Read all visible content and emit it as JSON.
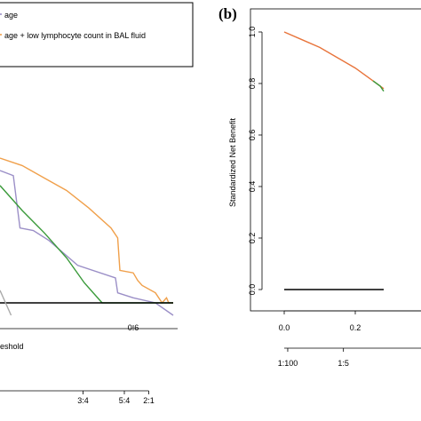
{
  "panels": {
    "b": {
      "label": "(b)"
    }
  },
  "legend": {
    "items": [
      {
        "label": "age",
        "color": "#9b8fc7"
      },
      {
        "label": "age + low lymphocyte count in BAL fluid",
        "color": "#f0a04b"
      }
    ]
  },
  "colors": {
    "orange": "#f0a04b",
    "purple": "#9b8fc7",
    "green": "#3a9a3a",
    "gray": "#aaaaaa",
    "black": "#000000",
    "orange_b": "#e8743b"
  },
  "chart_data": [
    {
      "type": "line",
      "panel": "a",
      "title": "",
      "xlabel": "eshold",
      "ylabel": "",
      "xlim": [
        0.0,
        0.8
      ],
      "ylim": [
        -0.05,
        1.0
      ],
      "xticks": [
        {
          "value": 0.6,
          "label": "0.6"
        }
      ],
      "x2ticks": [
        {
          "value": 0.43,
          "label": "3:4"
        },
        {
          "value": 0.56,
          "label": "5:4"
        },
        {
          "value": 0.67,
          "label": "2:1"
        }
      ],
      "series": [
        {
          "color": "#f0a04b",
          "points": [
            [
              0.0,
              0.58
            ],
            [
              0.1,
              0.55
            ],
            [
              0.2,
              0.5
            ],
            [
              0.3,
              0.45
            ],
            [
              0.4,
              0.38
            ],
            [
              0.5,
              0.3
            ],
            [
              0.53,
              0.26
            ],
            [
              0.54,
              0.13
            ],
            [
              0.6,
              0.12
            ],
            [
              0.62,
              0.09
            ],
            [
              0.64,
              0.07
            ],
            [
              0.7,
              0.04
            ],
            [
              0.73,
              0.0
            ],
            [
              0.75,
              0.02
            ],
            [
              0.76,
              0.0
            ],
            [
              0.78,
              0.0
            ]
          ]
        },
        {
          "color": "#9b8fc7",
          "points": [
            [
              0.0,
              0.53
            ],
            [
              0.06,
              0.51
            ],
            [
              0.09,
              0.3
            ],
            [
              0.15,
              0.29
            ],
            [
              0.22,
              0.25
            ],
            [
              0.35,
              0.15
            ],
            [
              0.52,
              0.1
            ],
            [
              0.53,
              0.04
            ],
            [
              0.6,
              0.02
            ],
            [
              0.7,
              0.0
            ],
            [
              0.78,
              -0.05
            ]
          ]
        },
        {
          "color": "#3a9a3a",
          "points": [
            [
              0.0,
              0.47
            ],
            [
              0.1,
              0.37
            ],
            [
              0.2,
              0.28
            ],
            [
              0.3,
              0.18
            ],
            [
              0.38,
              0.08
            ],
            [
              0.46,
              0.0
            ],
            [
              0.78,
              0.0
            ]
          ]
        },
        {
          "color": "#000000",
          "points": [
            [
              0.0,
              0.0
            ],
            [
              0.78,
              0.0
            ]
          ]
        },
        {
          "color": "#aaaaaa",
          "points": [
            [
              0.0,
              0.05
            ],
            [
              0.05,
              -0.05
            ]
          ]
        }
      ]
    },
    {
      "type": "line",
      "panel": "b",
      "title": "",
      "xlabel": "",
      "ylabel": "Standardized Net Benefit",
      "xlim": [
        0.0,
        0.55
      ],
      "ylim": [
        0.0,
        1.0
      ],
      "yticks": [
        "0.0",
        "0.2",
        "0.4",
        "0.6",
        "0.8",
        "1.0"
      ],
      "xticks": [
        {
          "value": 0.0,
          "label": "0.0"
        },
        {
          "value": 0.2,
          "label": "0.2"
        }
      ],
      "x2ticks": [
        {
          "value": 0.0099,
          "label": "1:100"
        },
        {
          "value": 0.1667,
          "label": "1:5"
        }
      ],
      "series": [
        {
          "color": "#e8743b",
          "points": [
            [
              0.0,
              1.0
            ],
            [
              0.05,
              0.97
            ],
            [
              0.1,
              0.94
            ],
            [
              0.15,
              0.9
            ],
            [
              0.2,
              0.86
            ],
            [
              0.25,
              0.81
            ],
            [
              0.28,
              0.78
            ]
          ]
        },
        {
          "color": "#3a9a3a",
          "points": [
            [
              0.25,
              0.81
            ],
            [
              0.27,
              0.79
            ],
            [
              0.28,
              0.77
            ]
          ]
        },
        {
          "color": "#000000",
          "points": [
            [
              0.0,
              0.0
            ],
            [
              0.28,
              0.0
            ]
          ]
        }
      ]
    }
  ]
}
